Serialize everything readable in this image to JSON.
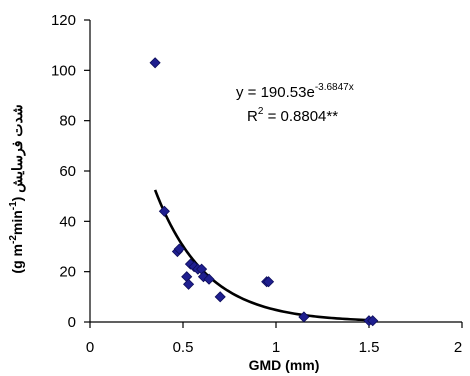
{
  "chart_data": {
    "type": "scatter",
    "xlabel": "GMD (mm)",
    "ylabel": {
      "prefix": "(g m",
      "sup1": "-2",
      "mid": "min",
      "sup2": "-1",
      "suffix": ") شدت فرسایش"
    },
    "xlim": [
      0,
      2
    ],
    "ylim": [
      0,
      120
    ],
    "x_ticks": [
      0,
      0.5,
      1,
      1.5,
      2
    ],
    "x_tick_labels": [
      "0",
      "0.5",
      "1",
      "1.5",
      "2"
    ],
    "y_ticks": [
      0,
      20,
      40,
      60,
      80,
      100,
      120
    ],
    "y_tick_labels": [
      "0",
      "20",
      "40",
      "60",
      "80",
      "100",
      "120"
    ],
    "grid": false,
    "series": [
      {
        "marker": "diamond",
        "color": "#1f1f8f",
        "x": [
          0.35,
          0.4,
          0.47,
          0.48,
          0.52,
          0.53,
          0.54,
          0.56,
          0.58,
          0.6,
          0.61,
          0.64,
          0.7,
          0.95,
          0.96,
          1.15,
          1.5,
          1.52
        ],
        "y": [
          103,
          44,
          28,
          29,
          18,
          15,
          23,
          22,
          21,
          21,
          18,
          17,
          10,
          16,
          16,
          2,
          0.5,
          0.5
        ]
      }
    ],
    "fit": {
      "type": "exponential",
      "a": 190.53,
      "b": -3.6847,
      "x_range": [
        0.35,
        1.5
      ],
      "color": "#000000"
    },
    "equation": {
      "base": "y = 190.53e",
      "exponent": "-3.6847x"
    },
    "r_squared": {
      "prefix": "R",
      "sup": "2",
      "value": " = 0.8804**"
    }
  }
}
